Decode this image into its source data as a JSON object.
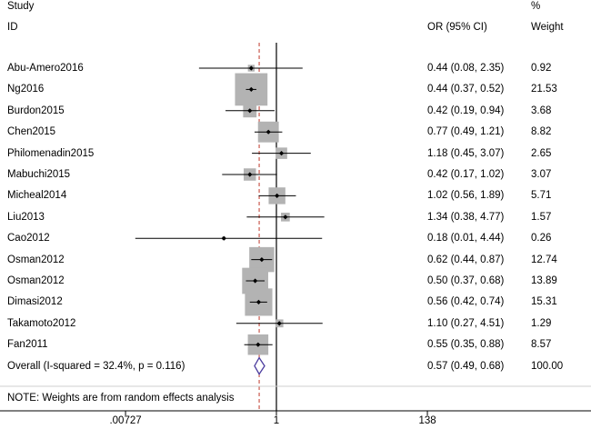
{
  "header": {
    "study_label": "Study",
    "id_label": "ID",
    "or_label": "OR (95% CI)",
    "pct_label": "%",
    "weight_label": "Weight"
  },
  "note": "NOTE: Weights are from random effects analysis",
  "chart_data": {
    "type": "forest",
    "scale": "log",
    "x_axis_ticks": [
      {
        "value": 0.00727,
        "label": ".00727"
      },
      {
        "value": 1,
        "label": "1"
      },
      {
        "value": 138,
        "label": "138"
      }
    ],
    "reference_line": 1,
    "pooled_line": 0.57,
    "studies": [
      {
        "id": "Abu-Amero2016",
        "or": 0.44,
        "lo": 0.08,
        "hi": 2.35,
        "or_text": "0.44 (0.08, 2.35)",
        "weight": 0.92,
        "weight_text": "0.92"
      },
      {
        "id": "Ng2016",
        "or": 0.44,
        "lo": 0.37,
        "hi": 0.52,
        "or_text": "0.44 (0.37, 0.52)",
        "weight": 21.53,
        "weight_text": "21.53"
      },
      {
        "id": "Burdon2015",
        "or": 0.42,
        "lo": 0.19,
        "hi": 0.94,
        "or_text": "0.42 (0.19, 0.94)",
        "weight": 3.68,
        "weight_text": "3.68"
      },
      {
        "id": "Chen2015",
        "or": 0.77,
        "lo": 0.49,
        "hi": 1.21,
        "or_text": "0.77 (0.49, 1.21)",
        "weight": 8.82,
        "weight_text": "8.82"
      },
      {
        "id": "Philomenadin2015",
        "or": 1.18,
        "lo": 0.45,
        "hi": 3.07,
        "or_text": "1.18 (0.45, 3.07)",
        "weight": 2.65,
        "weight_text": "2.65"
      },
      {
        "id": "Mabuchi2015",
        "or": 0.42,
        "lo": 0.17,
        "hi": 1.02,
        "or_text": "0.42 (0.17, 1.02)",
        "weight": 3.07,
        "weight_text": "3.07"
      },
      {
        "id": "Micheal2014",
        "or": 1.02,
        "lo": 0.56,
        "hi": 1.89,
        "or_text": "1.02 (0.56, 1.89)",
        "weight": 5.71,
        "weight_text": "5.71"
      },
      {
        "id": "Liu2013",
        "or": 1.34,
        "lo": 0.38,
        "hi": 4.77,
        "or_text": "1.34 (0.38, 4.77)",
        "weight": 1.57,
        "weight_text": "1.57"
      },
      {
        "id": "Cao2012",
        "or": 0.18,
        "lo": 0.01,
        "hi": 4.44,
        "or_text": "0.18 (0.01, 4.44)",
        "weight": 0.26,
        "weight_text": "0.26"
      },
      {
        "id": "Osman2012",
        "or": 0.62,
        "lo": 0.44,
        "hi": 0.87,
        "or_text": "0.62 (0.44, 0.87)",
        "weight": 12.74,
        "weight_text": "12.74"
      },
      {
        "id": "Osman2012",
        "or": 0.5,
        "lo": 0.37,
        "hi": 0.68,
        "or_text": "0.50 (0.37, 0.68)",
        "weight": 13.89,
        "weight_text": "13.89"
      },
      {
        "id": "Dimasi2012",
        "or": 0.56,
        "lo": 0.42,
        "hi": 0.74,
        "or_text": "0.56 (0.42, 0.74)",
        "weight": 15.31,
        "weight_text": "15.31"
      },
      {
        "id": "Takamoto2012",
        "or": 1.1,
        "lo": 0.27,
        "hi": 4.51,
        "or_text": "1.10 (0.27, 4.51)",
        "weight": 1.29,
        "weight_text": "1.29"
      },
      {
        "id": "Fan2011",
        "or": 0.55,
        "lo": 0.35,
        "hi": 0.88,
        "or_text": "0.55 (0.35, 0.88)",
        "weight": 8.57,
        "weight_text": "8.57"
      }
    ],
    "overall": {
      "label": "Overall  (I-squared = 32.4%, p = 0.116)",
      "or": 0.57,
      "lo": 0.49,
      "hi": 0.68,
      "or_text": "0.57 (0.49, 0.68)",
      "weight_text": "100.00"
    },
    "colors": {
      "box": "#b3b3b3",
      "line": "#000000",
      "pooled_line": "#c0392b",
      "diamond": "#4b3c9e"
    }
  }
}
